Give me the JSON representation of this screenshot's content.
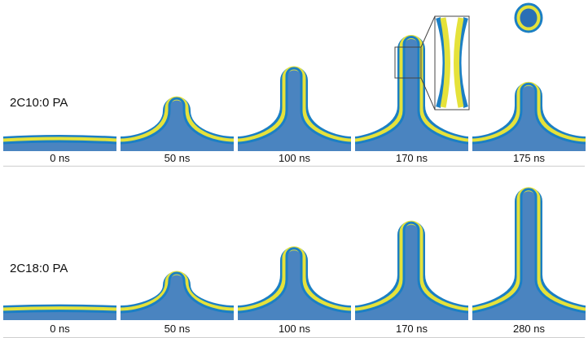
{
  "rows": [
    {
      "label": "2C10:0 PA",
      "frames": [
        {
          "time": "0 ns",
          "height": 0.03
        },
        {
          "time": "50 ns",
          "height": 0.45
        },
        {
          "time": "100 ns",
          "height": 0.72
        },
        {
          "time": "170 ns",
          "height": 1.0,
          "neck": true
        },
        {
          "time": "175 ns",
          "height": 0.58,
          "pinched_vesicle": true
        }
      ]
    },
    {
      "label": "2C18:0 PA",
      "frames": [
        {
          "time": "0 ns",
          "height": 0.02
        },
        {
          "time": "50 ns",
          "height": 0.4
        },
        {
          "time": "100 ns",
          "height": 0.62
        },
        {
          "time": "170 ns",
          "height": 0.85
        },
        {
          "time": "280 ns",
          "height": 1.15
        }
      ]
    }
  ],
  "colors": {
    "headgroup": "#1b7fc4",
    "tail": "#e5e23a",
    "bulk": "#2a6fb5",
    "inset_border": "#444444"
  }
}
